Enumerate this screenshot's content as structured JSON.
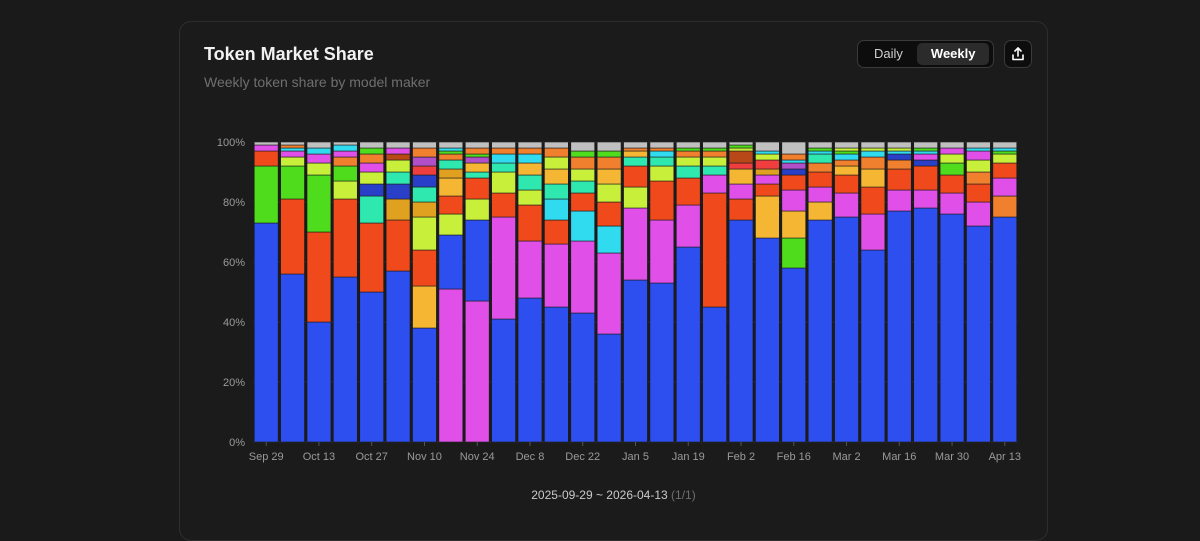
{
  "card": {
    "title": "Token Market Share",
    "subtitle": "Weekly token share by model maker"
  },
  "controls": {
    "daily_label": "Daily",
    "weekly_label": "Weekly",
    "selected": "Weekly",
    "export_icon": "share-upload-icon"
  },
  "footer": {
    "date_range": "2025-09-29 ~ 2026-04-13",
    "page_indicator": "(1/1)"
  },
  "chart_data": {
    "type": "bar",
    "stacked": true,
    "title": "",
    "xlabel": "",
    "ylabel": "",
    "ylim": [
      0,
      100
    ],
    "y_ticks": [
      "0%",
      "20%",
      "40%",
      "60%",
      "80%",
      "100%"
    ],
    "x_tick_labels": [
      "Sep 29",
      "Oct 13",
      "Oct 27",
      "Nov 10",
      "Nov 24",
      "Dec 8",
      "Dec 22",
      "Jan 5",
      "Jan 19",
      "Feb 2",
      "Feb 16",
      "Mar 2",
      "Mar 16",
      "Mar 30",
      "Apr 13"
    ],
    "grid": true,
    "legend": "none",
    "colors": [
      "#2d4ff0",
      "#4fdc1c",
      "#f04a1c",
      "#e04fe8",
      "#f5b733",
      "#c8ef3a",
      "#30dbef",
      "#2ee8b0",
      "#f07f2e",
      "#f03e3e",
      "#e0a020",
      "#b84818",
      "#b04fc8",
      "#2a3fc8",
      "#9090a0",
      "#c0c0c0"
    ],
    "categories": [
      "Sep 29",
      "Oct 6",
      "Oct 13",
      "Oct 20",
      "Oct 27",
      "Nov 3",
      "Nov 10",
      "Nov 17",
      "Nov 24",
      "Dec 1",
      "Dec 8",
      "Dec 15",
      "Dec 22",
      "Dec 29",
      "Jan 5",
      "Jan 12",
      "Jan 19",
      "Jan 26",
      "Feb 2",
      "Feb 9",
      "Feb 16",
      "Feb 23",
      "Mar 2",
      "Mar 9",
      "Mar 16",
      "Mar 23",
      "Mar 30",
      "Apr 6",
      "Apr 13"
    ],
    "stacks": [
      [
        [
          0,
          73
        ],
        [
          1,
          19
        ],
        [
          2,
          5
        ],
        [
          3,
          2
        ],
        [
          15,
          1
        ]
      ],
      [
        [
          0,
          56
        ],
        [
          2,
          25
        ],
        [
          1,
          11
        ],
        [
          5,
          3
        ],
        [
          3,
          2
        ],
        [
          6,
          1
        ],
        [
          8,
          1
        ],
        [
          15,
          1
        ]
      ],
      [
        [
          0,
          40
        ],
        [
          2,
          30
        ],
        [
          1,
          19
        ],
        [
          5,
          4
        ],
        [
          3,
          3
        ],
        [
          6,
          2
        ],
        [
          15,
          2
        ]
      ],
      [
        [
          0,
          55
        ],
        [
          2,
          26
        ],
        [
          5,
          6
        ],
        [
          1,
          5
        ],
        [
          8,
          3
        ],
        [
          3,
          2
        ],
        [
          6,
          2
        ],
        [
          15,
          1
        ]
      ],
      [
        [
          0,
          50
        ],
        [
          2,
          23
        ],
        [
          7,
          9
        ],
        [
          13,
          4
        ],
        [
          5,
          4
        ],
        [
          3,
          3
        ],
        [
          8,
          3
        ],
        [
          1,
          2
        ],
        [
          15,
          2
        ]
      ],
      [
        [
          0,
          57
        ],
        [
          2,
          17
        ],
        [
          10,
          7
        ],
        [
          13,
          5
        ],
        [
          7,
          4
        ],
        [
          5,
          4
        ],
        [
          11,
          2
        ],
        [
          3,
          2
        ],
        [
          15,
          2
        ]
      ],
      [
        [
          0,
          38
        ],
        [
          4,
          14
        ],
        [
          2,
          12
        ],
        [
          5,
          11
        ],
        [
          10,
          5
        ],
        [
          7,
          5
        ],
        [
          13,
          4
        ],
        [
          9,
          3
        ],
        [
          12,
          3
        ],
        [
          8,
          3
        ],
        [
          15,
          2
        ]
      ],
      [
        [
          3,
          51
        ],
        [
          0,
          18
        ],
        [
          5,
          7
        ],
        [
          2,
          6
        ],
        [
          4,
          6
        ],
        [
          10,
          3
        ],
        [
          7,
          3
        ],
        [
          8,
          2
        ],
        [
          1,
          1
        ],
        [
          6,
          1
        ],
        [
          15,
          2
        ]
      ],
      [
        [
          3,
          47
        ],
        [
          0,
          27
        ],
        [
          5,
          7
        ],
        [
          2,
          7
        ],
        [
          7,
          2
        ],
        [
          4,
          3
        ],
        [
          12,
          2
        ],
        [
          1,
          1
        ],
        [
          8,
          2
        ],
        [
          15,
          2
        ]
      ],
      [
        [
          0,
          41
        ],
        [
          3,
          34
        ],
        [
          2,
          8
        ],
        [
          5,
          7
        ],
        [
          7,
          3
        ],
        [
          6,
          3
        ],
        [
          8,
          2
        ],
        [
          15,
          2
        ]
      ],
      [
        [
          0,
          48
        ],
        [
          3,
          19
        ],
        [
          2,
          12
        ],
        [
          5,
          5
        ],
        [
          7,
          5
        ],
        [
          4,
          4
        ],
        [
          6,
          3
        ],
        [
          8,
          2
        ],
        [
          15,
          2
        ]
      ],
      [
        [
          0,
          45
        ],
        [
          3,
          21
        ],
        [
          2,
          8
        ],
        [
          6,
          7
        ],
        [
          7,
          5
        ],
        [
          4,
          5
        ],
        [
          5,
          4
        ],
        [
          8,
          3
        ],
        [
          15,
          2
        ]
      ],
      [
        [
          0,
          43
        ],
        [
          3,
          24
        ],
        [
          6,
          10
        ],
        [
          2,
          6
        ],
        [
          7,
          4
        ],
        [
          5,
          4
        ],
        [
          8,
          4
        ],
        [
          1,
          2
        ],
        [
          15,
          3
        ]
      ],
      [
        [
          0,
          36
        ],
        [
          3,
          27
        ],
        [
          6,
          9
        ],
        [
          2,
          8
        ],
        [
          5,
          6
        ],
        [
          4,
          5
        ],
        [
          8,
          4
        ],
        [
          1,
          2
        ],
        [
          15,
          3
        ]
      ],
      [
        [
          0,
          54
        ],
        [
          3,
          24
        ],
        [
          5,
          7
        ],
        [
          2,
          7
        ],
        [
          7,
          3
        ],
        [
          4,
          2
        ],
        [
          8,
          1
        ],
        [
          15,
          2
        ]
      ],
      [
        [
          0,
          53
        ],
        [
          3,
          21
        ],
        [
          2,
          13
        ],
        [
          5,
          5
        ],
        [
          7,
          3
        ],
        [
          6,
          2
        ],
        [
          8,
          1
        ],
        [
          15,
          2
        ]
      ],
      [
        [
          0,
          65
        ],
        [
          3,
          14
        ],
        [
          2,
          9
        ],
        [
          7,
          4
        ],
        [
          5,
          3
        ],
        [
          8,
          2
        ],
        [
          1,
          1
        ],
        [
          15,
          2
        ]
      ],
      [
        [
          0,
          45
        ],
        [
          2,
          38
        ],
        [
          3,
          6
        ],
        [
          7,
          3
        ],
        [
          5,
          3
        ],
        [
          8,
          2
        ],
        [
          1,
          1
        ],
        [
          15,
          2
        ]
      ],
      [
        [
          0,
          74
        ],
        [
          2,
          7
        ],
        [
          3,
          5
        ],
        [
          4,
          5
        ],
        [
          9,
          2
        ],
        [
          11,
          4
        ],
        [
          5,
          1
        ],
        [
          1,
          1
        ],
        [
          15,
          1
        ]
      ],
      [
        [
          0,
          68
        ],
        [
          4,
          14
        ],
        [
          2,
          4
        ],
        [
          3,
          3
        ],
        [
          10,
          2
        ],
        [
          9,
          3
        ],
        [
          5,
          2
        ],
        [
          6,
          1
        ],
        [
          15,
          3
        ]
      ],
      [
        [
          0,
          58
        ],
        [
          1,
          10
        ],
        [
          4,
          9
        ],
        [
          3,
          7
        ],
        [
          2,
          5
        ],
        [
          13,
          2
        ],
        [
          12,
          2
        ],
        [
          6,
          1
        ],
        [
          8,
          2
        ],
        [
          15,
          4
        ]
      ],
      [
        [
          0,
          74
        ],
        [
          4,
          6
        ],
        [
          3,
          5
        ],
        [
          2,
          5
        ],
        [
          8,
          3
        ],
        [
          7,
          3
        ],
        [
          6,
          1
        ],
        [
          1,
          1
        ],
        [
          15,
          2
        ]
      ],
      [
        [
          0,
          75
        ],
        [
          3,
          8
        ],
        [
          2,
          6
        ],
        [
          4,
          3
        ],
        [
          8,
          2
        ],
        [
          6,
          2
        ],
        [
          1,
          1
        ],
        [
          5,
          1
        ],
        [
          15,
          2
        ]
      ],
      [
        [
          0,
          64
        ],
        [
          3,
          12
        ],
        [
          2,
          9
        ],
        [
          4,
          6
        ],
        [
          8,
          4
        ],
        [
          6,
          2
        ],
        [
          5,
          1
        ],
        [
          15,
          2
        ]
      ],
      [
        [
          0,
          77
        ],
        [
          3,
          7
        ],
        [
          2,
          7
        ],
        [
          8,
          3
        ],
        [
          13,
          2
        ],
        [
          6,
          1
        ],
        [
          5,
          1
        ],
        [
          15,
          2
        ]
      ],
      [
        [
          0,
          78
        ],
        [
          3,
          6
        ],
        [
          2,
          8
        ],
        [
          13,
          2
        ],
        [
          3,
          2
        ],
        [
          6,
          1
        ],
        [
          1,
          1
        ],
        [
          15,
          2
        ]
      ],
      [
        [
          0,
          76
        ],
        [
          3,
          7
        ],
        [
          2,
          6
        ],
        [
          1,
          4
        ],
        [
          5,
          3
        ],
        [
          3,
          2
        ],
        [
          15,
          2
        ]
      ],
      [
        [
          0,
          72
        ],
        [
          3,
          8
        ],
        [
          2,
          6
        ],
        [
          8,
          4
        ],
        [
          5,
          4
        ],
        [
          3,
          3
        ],
        [
          6,
          1
        ],
        [
          15,
          2
        ]
      ],
      [
        [
          0,
          75
        ],
        [
          8,
          7
        ],
        [
          3,
          6
        ],
        [
          2,
          5
        ],
        [
          5,
          3
        ],
        [
          1,
          1
        ],
        [
          6,
          1
        ],
        [
          15,
          2
        ]
      ]
    ]
  }
}
